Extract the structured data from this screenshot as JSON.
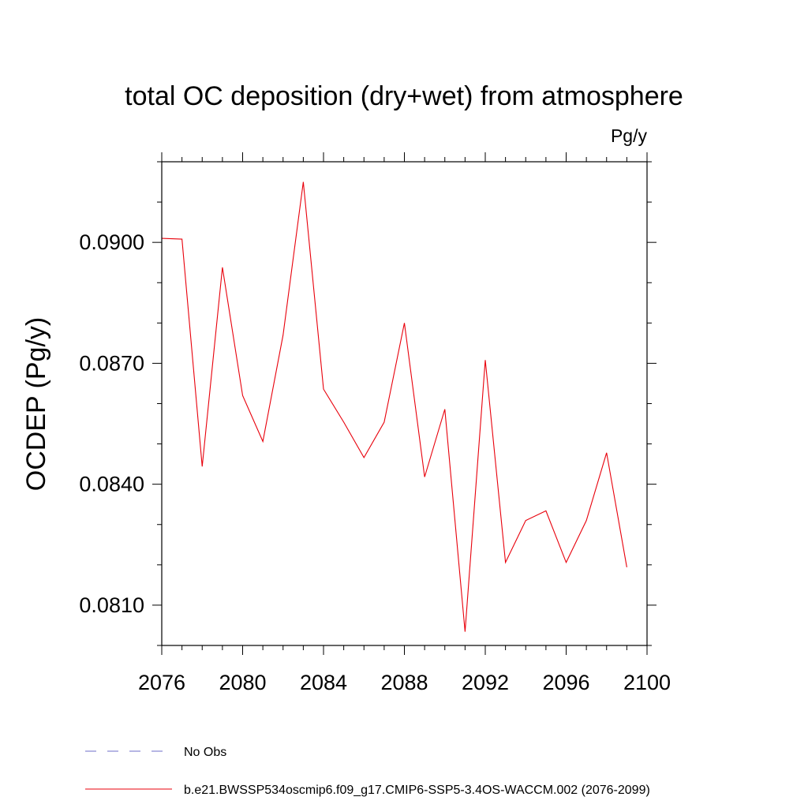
{
  "chart_data": {
    "type": "line",
    "title": "total OC deposition (dry+wet) from atmosphere",
    "units_label": "Pg/y",
    "xlabel": "",
    "ylabel": "OCDEP  (Pg/y)",
    "xlim": [
      2076,
      2100
    ],
    "ylim": [
      0.08,
      0.092
    ],
    "x_ticks": [
      2076,
      2080,
      2084,
      2088,
      2092,
      2096,
      2100
    ],
    "y_ticks": [
      0.081,
      0.084,
      0.087,
      0.09
    ],
    "y_tick_labels": [
      "0.0810",
      "0.0840",
      "0.0870",
      "0.0900"
    ],
    "x": [
      2076,
      2077,
      2078,
      2079,
      2080,
      2081,
      2082,
      2083,
      2084,
      2085,
      2086,
      2087,
      2088,
      2089,
      2090,
      2091,
      2092,
      2093,
      2094,
      2095,
      2096,
      2097,
      2098,
      2099
    ],
    "series": [
      {
        "name": "b.e21.BWSSP534oscmip6.f09_g17.CMIP6-SSP5-3.4OS-WACCM.002 (2076-2099)",
        "color": "#e8000b",
        "values": [
          0.0901,
          0.09008,
          0.08444,
          0.08938,
          0.0862,
          0.08506,
          0.0877,
          0.0915,
          0.08636,
          0.08554,
          0.08466,
          0.08554,
          0.088,
          0.08418,
          0.08586,
          0.08034,
          0.08708,
          0.08206,
          0.0831,
          0.08334,
          0.08206,
          0.0831,
          0.08478,
          0.08194
        ]
      }
    ],
    "legend": [
      {
        "label": "No Obs",
        "style": "dashed",
        "color": "#6e6ec8"
      },
      {
        "label": "b.e21.BWSSP534oscmip6.f09_g17.CMIP6-SSP5-3.4OS-WACCM.002 (2076-2099)",
        "style": "solid",
        "color": "#e8000b"
      }
    ]
  }
}
